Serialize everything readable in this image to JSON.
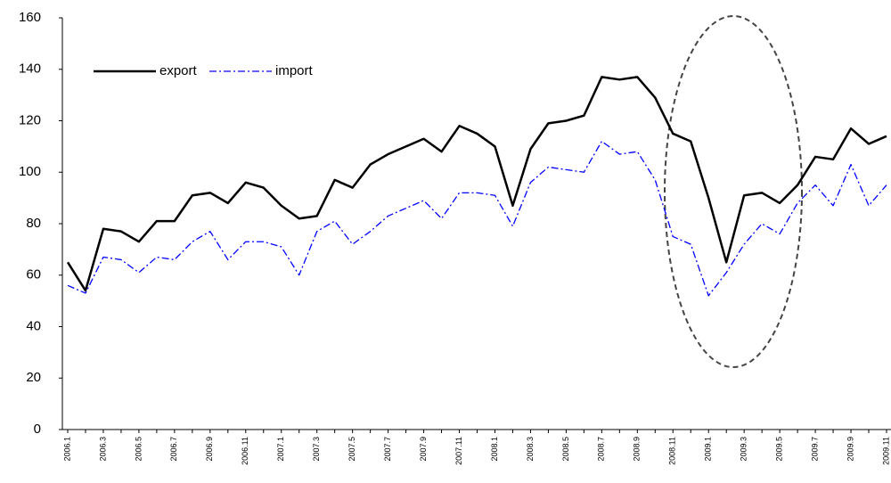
{
  "chart_data": {
    "type": "line",
    "categories": [
      "2006.1",
      null,
      "2006.3",
      null,
      "2006.5",
      null,
      "2006.7",
      null,
      "2006.9",
      null,
      "2006.11",
      null,
      "2007.1",
      null,
      "2007.3",
      null,
      "2007.5",
      null,
      "2007.7",
      null,
      "2007.9",
      null,
      "2007.11",
      null,
      "2008.1",
      null,
      "2008.3",
      null,
      "2008.5",
      null,
      "2008.7",
      null,
      "2008.9",
      null,
      "2008.11",
      null,
      "2009.1",
      null,
      "2009.3",
      null,
      "2009.5",
      null,
      "2009.7",
      null,
      "2009.9",
      null,
      "2009.11"
    ],
    "series": [
      {
        "name": "export",
        "color": "#000000",
        "values": [
          65,
          54,
          78,
          77,
          73,
          81,
          81,
          91,
          92,
          88,
          96,
          94,
          87,
          82,
          83,
          97,
          94,
          103,
          107,
          110,
          113,
          108,
          118,
          115,
          110,
          87,
          109,
          119,
          120,
          122,
          137,
          136,
          137,
          129,
          115,
          112,
          90,
          65,
          91,
          92,
          88,
          95,
          106,
          105,
          117,
          111,
          114
        ]
      },
      {
        "name": "import",
        "color": "#0000ff",
        "values": [
          56,
          53,
          67,
          66,
          61,
          67,
          66,
          73,
          77,
          66,
          73,
          73,
          71,
          60,
          77,
          81,
          72,
          77,
          83,
          86,
          89,
          82,
          92,
          92,
          91,
          79,
          96,
          102,
          101,
          100,
          112,
          107,
          108,
          97,
          75,
          72,
          52,
          61,
          72,
          80,
          76,
          88,
          95,
          87,
          103,
          87,
          95
        ]
      }
    ],
    "ylim": [
      0,
      160
    ],
    "yticks": [
      0,
      20,
      40,
      60,
      80,
      100,
      120,
      140,
      160
    ],
    "grid": false,
    "legend": "top-left"
  }
}
